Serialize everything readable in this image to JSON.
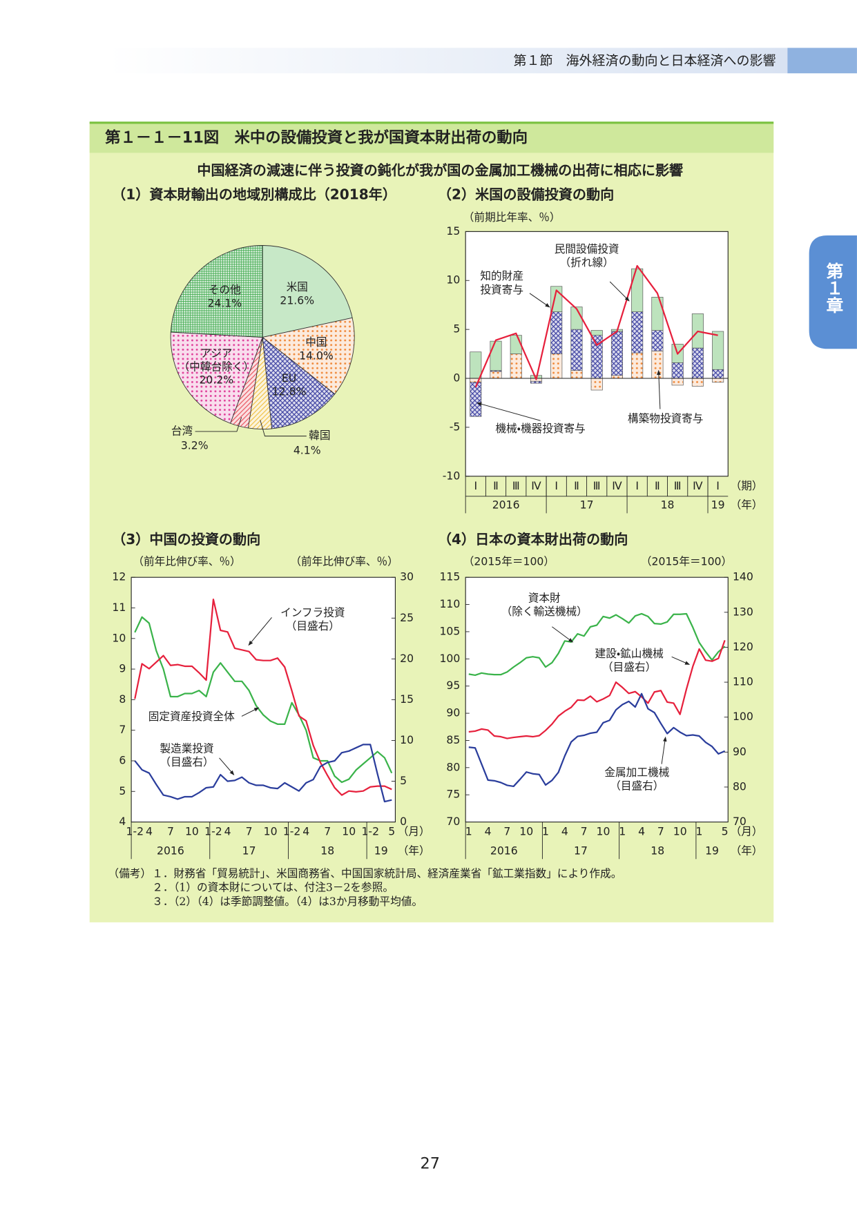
{
  "header": {
    "section": "第１節　海外経済の動向と日本経済への影響",
    "chapter": "第１章"
  },
  "figure": {
    "title": "第１－１－11図　米中の設備投資と我が国資本財出荷の動向",
    "subtitle": "中国経済の減速に伴う投資の鈍化が我が国の金属加工機械の出荷に相応に影響"
  },
  "chart_data": [
    {
      "type": "pie",
      "title": "（1）資本財輸出の地域別構成比（2018年）",
      "categories": [
        "米国",
        "中国",
        "EU",
        "韓国",
        "台湾",
        "アジア\n（中韓台除く）",
        "その他"
      ],
      "values": [
        21.6,
        14.0,
        12.8,
        4.1,
        3.2,
        20.2,
        24.1
      ],
      "value_labels": [
        "21.6%",
        "14.0%",
        "12.8%",
        "4.1%",
        "3.2%",
        "20.2%",
        "24.1%"
      ],
      "colors": [
        "#8fd28f",
        "#f08a3c",
        "#3b3fa0",
        "#f0c040",
        "#e8505a",
        "#e0409a",
        "#3aa848"
      ],
      "patterns": [
        "solid",
        "dots",
        "cross",
        "diag",
        "diag",
        "dots",
        "grid"
      ]
    },
    {
      "type": "bar",
      "stacked": true,
      "title": "（2）米国の設備投資の動向",
      "y_label": "（前期比年率、％）",
      "categories": [
        "Ⅰ",
        "Ⅱ",
        "Ⅲ",
        "Ⅳ",
        "Ⅰ",
        "Ⅱ",
        "Ⅲ",
        "Ⅳ",
        "Ⅰ",
        "Ⅱ",
        "Ⅲ",
        "Ⅳ",
        "Ⅰ"
      ],
      "groups": [
        "2016",
        "17",
        "18",
        "19"
      ],
      "x_unit": "（期）",
      "group_unit": "（年）",
      "ylim": [
        -10,
        15
      ],
      "yticks": [
        -10,
        -5,
        0,
        5,
        10,
        15
      ],
      "series": [
        {
          "name": "構築物投資寄与",
          "color": "#f08a3c",
          "pattern": "dots",
          "values": [
            -0.4,
            0.7,
            2.5,
            -0.3,
            2.5,
            0.8,
            -1.2,
            0.3,
            2.6,
            2.8,
            -0.7,
            -0.8,
            -0.4
          ]
        },
        {
          "name": "機械・機器投資寄与",
          "color": "#3b3fa0",
          "pattern": "cross",
          "values": [
            -3.5,
            0.1,
            0.0,
            -0.2,
            4.3,
            4.2,
            4.4,
            4.5,
            4.2,
            2.1,
            1.6,
            3.1,
            0.9
          ]
        },
        {
          "name": "知的財産\n投資寄与",
          "color": "#7cc87c",
          "pattern": "solid",
          "values": [
            2.7,
            3.0,
            1.9,
            0.3,
            2.6,
            2.3,
            0.5,
            0.2,
            4.4,
            3.4,
            1.9,
            3.5,
            3.9
          ]
        },
        {
          "name": "民間設備投資\n（折れ線）",
          "type": "line",
          "color": "#e6203c",
          "values": [
            -0.9,
            3.9,
            4.6,
            -0.1,
            9.0,
            7.1,
            3.4,
            4.8,
            11.5,
            8.7,
            2.5,
            4.8,
            4.4
          ]
        }
      ]
    },
    {
      "type": "line",
      "title": "（3）中国の投資の動向",
      "y_label": "（前年比伸び率、％）",
      "y2_label": "（前年比伸び率、％）",
      "categories": [
        "1-2",
        null,
        "4",
        null,
        null,
        "7",
        null,
        null,
        "10",
        null,
        null,
        "1-2",
        null,
        "4",
        null,
        null,
        "7",
        null,
        null,
        "10",
        null,
        null,
        "1-2",
        null,
        "4",
        null,
        null,
        "7",
        null,
        null,
        "10",
        null,
        null,
        "1-2",
        null,
        null,
        "5"
      ],
      "groups": [
        "2016",
        "17",
        "18",
        "19"
      ],
      "x_unit": "（月）",
      "group_unit": "（年）",
      "ylim": [
        4,
        12
      ],
      "yticks": [
        4,
        5,
        6,
        7,
        8,
        9,
        10,
        11,
        12
      ],
      "y2lim": [
        0,
        30
      ],
      "y2ticks": [
        0,
        5,
        10,
        15,
        20,
        25,
        30
      ],
      "series": [
        {
          "name": "固定資産投資全体",
          "color": "#3ab34a",
          "values": [
            10.2,
            10.7,
            10.5,
            9.6,
            9.0,
            8.1,
            8.1,
            8.2,
            8.2,
            8.3,
            8.1,
            8.9,
            9.2,
            8.9,
            8.6,
            8.6,
            8.3,
            7.8,
            7.5,
            7.3,
            7.2,
            7.2,
            7.9,
            7.5,
            7.0,
            6.1,
            6.0,
            6.0,
            5.5,
            5.3,
            5.4,
            5.7,
            5.9,
            6.1,
            6.3,
            6.1,
            5.6
          ]
        },
        {
          "name": "インフラ投資\n（目盛右）",
          "color": "#e6203c",
          "axis": "y2",
          "values": [
            15.1,
            19.4,
            18.8,
            19.6,
            20.4,
            19.2,
            19.3,
            19.1,
            19.1,
            18.3,
            17.4,
            27.3,
            23.5,
            23.3,
            21.3,
            21.1,
            20.9,
            19.9,
            19.8,
            19.8,
            20.1,
            19.0,
            16.1,
            13.0,
            12.4,
            9.4,
            7.3,
            5.7,
            4.2,
            3.3,
            3.8,
            3.7,
            3.8,
            4.3,
            4.4,
            4.4,
            4.0
          ]
        },
        {
          "name": "製造業投資\n（目盛右）",
          "color": "#2a3d9c",
          "axis": "y2",
          "values": [
            7.5,
            6.4,
            6.0,
            4.6,
            3.3,
            3.1,
            2.8,
            3.1,
            3.1,
            3.6,
            4.2,
            4.3,
            5.8,
            5.0,
            5.1,
            5.5,
            4.8,
            4.5,
            4.5,
            4.2,
            4.1,
            4.8,
            4.3,
            3.8,
            4.8,
            5.2,
            6.8,
            7.3,
            7.5,
            8.5,
            8.7,
            9.1,
            9.5,
            9.5,
            5.9,
            2.5,
            2.7
          ]
        }
      ]
    },
    {
      "type": "line",
      "title": "（4）日本の資本財出荷の動向",
      "y_label": "（2015年＝100）",
      "y2_label": "（2015年＝100）",
      "categories": [
        "1",
        null,
        null,
        "4",
        null,
        null,
        "7",
        null,
        null,
        "10",
        null,
        null,
        "1",
        null,
        null,
        "4",
        null,
        null,
        "7",
        null,
        null,
        "10",
        null,
        null,
        "1",
        null,
        null,
        "4",
        null,
        null,
        "7",
        null,
        null,
        "10",
        null,
        null,
        "1",
        null,
        null,
        null,
        "5"
      ],
      "groups": [
        "2016",
        "17",
        "18",
        "19"
      ],
      "x_unit": "（月）",
      "group_unit": "（年）",
      "ylim": [
        70,
        115
      ],
      "yticks": [
        70,
        75,
        80,
        85,
        90,
        95,
        100,
        105,
        110,
        115
      ],
      "y2lim": [
        70,
        140
      ],
      "y2ticks": [
        70,
        80,
        90,
        100,
        110,
        120,
        130,
        140
      ],
      "series": [
        {
          "name": "資本財\n（除く輸送機械）",
          "color": "#3ab34a",
          "values": [
            97.2,
            97.0,
            97.4,
            97.2,
            97.1,
            97.1,
            97.6,
            98.5,
            99.3,
            100.2,
            100.4,
            100.2,
            98.5,
            99.3,
            101.0,
            103.3,
            103.1,
            104.6,
            104.2,
            105.9,
            106.2,
            107.8,
            107.5,
            108.1,
            107.4,
            106.6,
            107.9,
            108.3,
            107.8,
            106.5,
            106.4,
            106.8,
            108.2,
            108.2,
            108.3,
            105.8,
            103.0,
            101.3,
            99.8,
            101.3,
            102.3
          ]
        },
        {
          "name": "建設・鉱山機械\n（目盛右）",
          "color": "#e6203c",
          "axis": "y2",
          "values": [
            95.8,
            96.0,
            96.6,
            96.3,
            94.6,
            94.4,
            93.9,
            94.2,
            94.4,
            94.6,
            94.4,
            94.7,
            96.2,
            98.0,
            100.3,
            101.7,
            102.8,
            104.9,
            104.8,
            106.0,
            104.4,
            105.2,
            106.2,
            110.0,
            108.5,
            106.8,
            107.3,
            105.8,
            104.0,
            107.2,
            107.6,
            104.3,
            104.0,
            100.8,
            108.0,
            114.5,
            119.5,
            116.3,
            116.0,
            116.8,
            122.0
          ]
        },
        {
          "name": "金属加工機械\n（目盛右）",
          "color": "#2a3d9c",
          "axis": "y2",
          "values": [
            91.4,
            91.2,
            86.6,
            82.0,
            81.8,
            81.3,
            80.5,
            80.2,
            82.2,
            84.3,
            83.8,
            83.6,
            80.6,
            81.9,
            84.2,
            88.9,
            92.9,
            94.5,
            94.8,
            95.4,
            95.7,
            98.4,
            99.1,
            102.1,
            103.6,
            104.5,
            102.9,
            106.7,
            102.4,
            101.3,
            98.2,
            95.3,
            97.0,
            95.7,
            94.7,
            94.9,
            94.6,
            92.8,
            91.6,
            89.5,
            90.3
          ]
        }
      ]
    }
  ],
  "notes": {
    "label": "（備考）",
    "items": [
      "１．財務省「貿易統計」、米国商務省、中国国家統計局、経済産業省「鉱工業指数」により作成。",
      "２．（1）の資本財については、付注3－2を参照。",
      "３．（2）（4）は季節調整値。（4）は3か月移動平均値。"
    ]
  },
  "page_number": "27"
}
